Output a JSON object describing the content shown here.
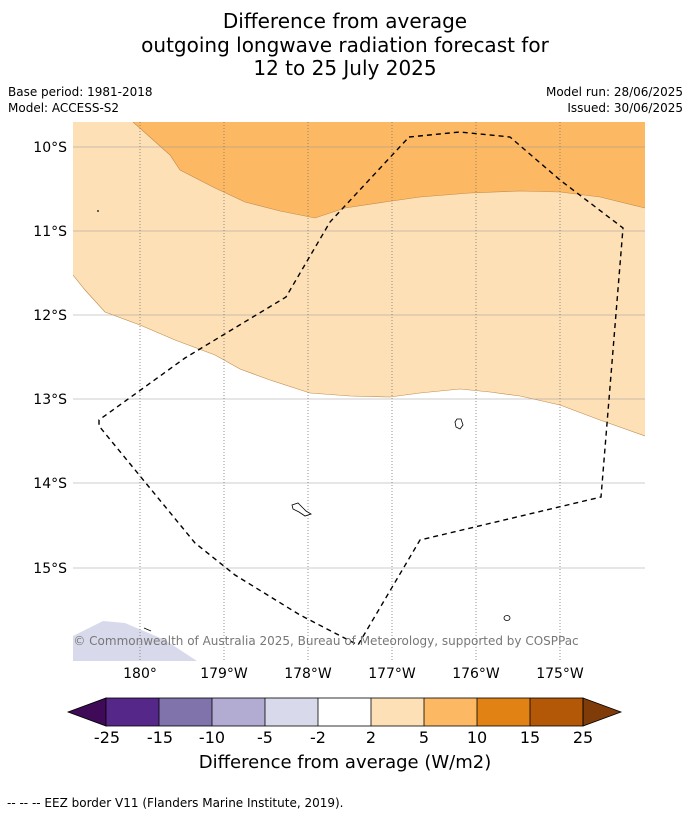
{
  "title": {
    "line1": "Difference from average",
    "line2": "outgoing longwave radiation forecast for",
    "line3": "12 to 25 July 2025"
  },
  "meta": {
    "base_period": "Base period: 1981-2018",
    "model": "Model: ACCESS-S2",
    "model_run": "Model run: 28/06/2025",
    "issued": "Issued: 30/06/2025"
  },
  "map": {
    "lat_labels": [
      "10°S",
      "11°S",
      "12°S",
      "13°S",
      "14°S",
      "15°S"
    ],
    "lon_labels": [
      "180°",
      "179°W",
      "178°W",
      "177°W",
      "176°W",
      "175°W"
    ],
    "copyright": "© Commonwealth of Australia 2025, Bureau of Meteorology, supported by COSPPac",
    "colors": {
      "band_2_5": "#fde0b6",
      "band_5_10": "#fdb863",
      "band_neg2_neg5": "#d8daeb"
    }
  },
  "colorbar": {
    "title": "Difference from average (W/m2)",
    "ticks": [
      "-25",
      "-15",
      "-10",
      "-5",
      "-2",
      "2",
      "5",
      "10",
      "15",
      "25"
    ],
    "colors": [
      "#3f0a57",
      "#542788",
      "#8073ac",
      "#b2abd2",
      "#d8daeb",
      "#ffffff",
      "#fee0b6",
      "#fdb863",
      "#e08214",
      "#b35806",
      "#7f3b08"
    ]
  },
  "footnote": "--  --  -- EEZ border V11 (Flanders Marine Institute, 2019)."
}
